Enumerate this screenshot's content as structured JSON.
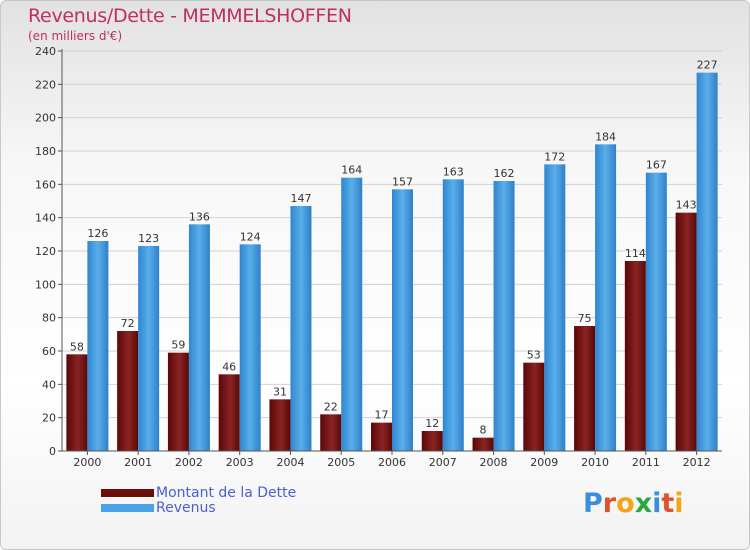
{
  "page": {
    "title": "Revenus/Dette - MEMMELSHOFFEN",
    "subtitle": "(en milliers d'€)",
    "logo": {
      "letters": [
        "P",
        "r",
        "o",
        "x",
        "i",
        "t",
        "i"
      ],
      "colors": [
        "#3b8fd8",
        "#e0522b",
        "#f2a51b",
        "#2aa83f",
        "#3b8fd8",
        "#e0522b",
        "#f2a51b"
      ]
    }
  },
  "legend": {
    "items": [
      {
        "label": "Montant de la Dette",
        "color": "#6b0d0d"
      },
      {
        "label": "Revenus",
        "color": "#4aa3e8"
      }
    ]
  },
  "chart_data": {
    "type": "bar",
    "categories": [
      "2000",
      "2001",
      "2002",
      "2003",
      "2004",
      "2005",
      "2006",
      "2007",
      "2008",
      "2009",
      "2010",
      "2011",
      "2012"
    ],
    "series": [
      {
        "name": "Montant de la Dette",
        "values": [
          58,
          72,
          59,
          46,
          31,
          22,
          17,
          12,
          8,
          53,
          75,
          114,
          143
        ],
        "color": "#7a1a1a"
      },
      {
        "name": "Revenus",
        "values": [
          126,
          123,
          136,
          124,
          147,
          164,
          157,
          163,
          162,
          172,
          184,
          167,
          227
        ],
        "color": "#4aa3e8"
      }
    ],
    "yticks": [
      0,
      20,
      40,
      60,
      80,
      100,
      120,
      140,
      160,
      180,
      200,
      220,
      240
    ],
    "ylim": [
      0,
      240
    ],
    "grid": true
  }
}
